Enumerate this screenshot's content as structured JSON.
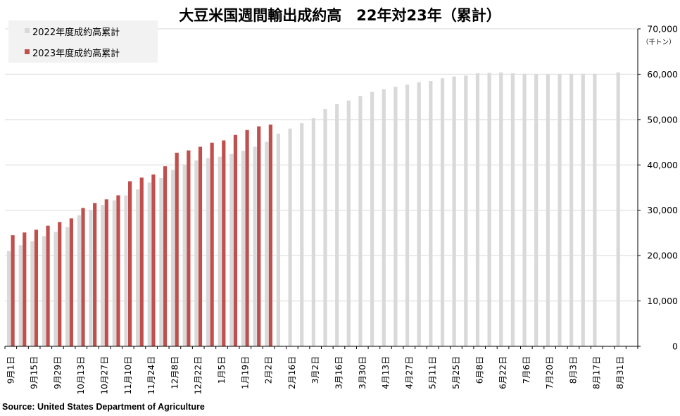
{
  "colors": {
    "series_2022": "#d9d9d9",
    "series_2023": "#c0504d",
    "grid": "#d9d9d9",
    "axis": "#000000"
  },
  "source": "Source: United States Department of Agriculture",
  "chart_data": {
    "type": "bar",
    "title": "大豆米国週間輸出成約高　22年対23年（累計）",
    "y_unit_label": "（千トン）",
    "ylim": [
      0,
      70000
    ],
    "yticks": [
      "0",
      "10,000",
      "20,000",
      "30,000",
      "40,000",
      "50,000",
      "60,000",
      "70,000"
    ],
    "ytick_values": [
      0,
      10000,
      20000,
      30000,
      40000,
      50000,
      60000,
      70000
    ],
    "y_axis_position": "right",
    "grid": true,
    "legend_position": "top-left",
    "x_tick_labels": [
      "9月1日",
      "9月15日",
      "9月29日",
      "10月13日",
      "10月27日",
      "11月10日",
      "11月24日",
      "12月8日",
      "12月22日",
      "1月5日",
      "1月19日",
      "2月2日",
      "2月16日",
      "3月2日",
      "3月16日",
      "3月30日",
      "4月13日",
      "4月27日",
      "5月11日",
      "5月25日",
      "6月8日",
      "6月22日",
      "7月6日",
      "7月20日",
      "8月3日",
      "8月17日",
      "8月31日"
    ],
    "series": [
      {
        "name": "2022年度成約高累計",
        "values": [
          21000,
          22300,
          23200,
          24300,
          25200,
          26300,
          28900,
          30100,
          31200,
          32200,
          33300,
          34600,
          36100,
          37100,
          38900,
          40100,
          41000,
          41500,
          41800,
          42400,
          43100,
          44000,
          45100,
          46900,
          48000,
          49200,
          50300,
          52300,
          53400,
          54200,
          55200,
          56100,
          56700,
          57200,
          57700,
          58200,
          58500,
          59100,
          59500,
          59700,
          60200,
          60300,
          60400,
          60200,
          60100,
          60000,
          60000,
          60000,
          60100,
          60100,
          60100,
          null,
          60400,
          null
        ]
      },
      {
        "name": "2023年度成約高累計",
        "values": [
          24500,
          25100,
          25700,
          26600,
          27400,
          28200,
          30500,
          31600,
          32400,
          33300,
          36400,
          37200,
          37900,
          39700,
          42700,
          43200,
          44000,
          44900,
          45400,
          46600,
          47700,
          48500,
          48900
        ]
      }
    ]
  }
}
